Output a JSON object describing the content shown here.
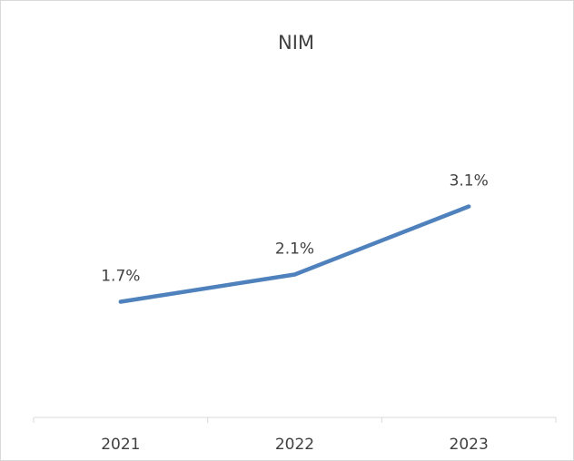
{
  "chart_data": {
    "type": "line",
    "title": "NIM",
    "categories": [
      "2021",
      "2022",
      "2023"
    ],
    "series": [
      {
        "name": "NIM",
        "color": "#4f81bd",
        "values": [
          1.7,
          2.1,
          3.1
        ],
        "value_labels": [
          "1.7%",
          "2.1%",
          "3.1%"
        ]
      }
    ]
  }
}
